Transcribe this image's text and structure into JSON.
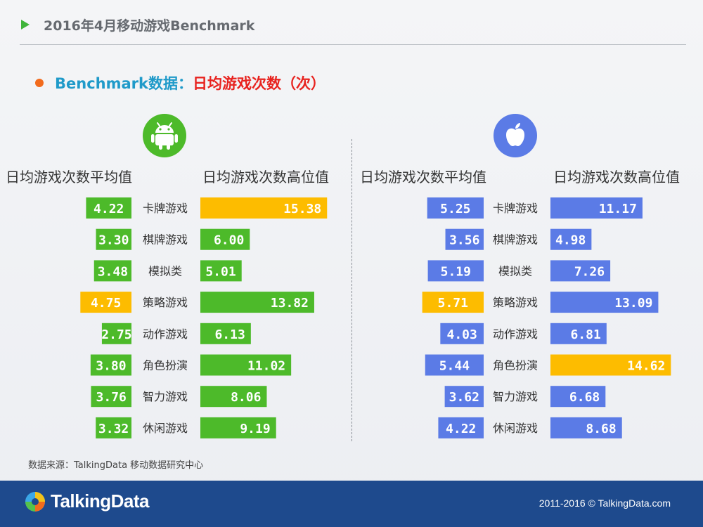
{
  "header": {
    "title": "2016年4月移动游戏Benchmark"
  },
  "subtitle": {
    "main": "Benchmark数据：",
    "highlight": "日均游戏次数（次）"
  },
  "colors": {
    "android": "#4dba2a",
    "ios": "#5b7be6",
    "highlight": "#fdbc00",
    "accent_orange": "#f26b1d",
    "title_blue": "#1f9ac9",
    "title_red": "#e8231f",
    "footer": "#1e4a8d"
  },
  "icons": {
    "android": "android-icon",
    "ios": "apple-icon"
  },
  "chart_data": [
    {
      "type": "bar",
      "platform": "Android",
      "categories": [
        "卡牌游戏",
        "棋牌游戏",
        "模拟类",
        "策略游戏",
        "动作游戏",
        "角色扮演",
        "智力游戏",
        "休闲游戏"
      ],
      "series": [
        {
          "name": "日均游戏次数平均值",
          "values": [
            4.22,
            3.3,
            3.48,
            4.75,
            2.75,
            3.8,
            3.76,
            3.32
          ],
          "labels": [
            "4.22",
            "3.30",
            "3.48",
            "4.75",
            "2.75",
            "3.80",
            "3.76",
            "3.32"
          ],
          "highlight_index": 3
        },
        {
          "name": "日均游戏次数高位值",
          "values": [
            15.38,
            6.0,
            5.01,
            13.82,
            6.13,
            11.02,
            8.06,
            9.19
          ],
          "labels": [
            "15.38",
            "6.00",
            "5.01",
            "13.82",
            "6.13",
            "11.02",
            "8.06",
            "9.19"
          ],
          "highlight_index": 0
        }
      ]
    },
    {
      "type": "bar",
      "platform": "iOS",
      "categories": [
        "卡牌游戏",
        "棋牌游戏",
        "模拟类",
        "策略游戏",
        "动作游戏",
        "角色扮演",
        "智力游戏",
        "休闲游戏"
      ],
      "series": [
        {
          "name": "日均游戏次数平均值",
          "values": [
            5.25,
            3.56,
            5.19,
            5.71,
            4.03,
            5.44,
            3.62,
            4.22
          ],
          "labels": [
            "5.25",
            "3.56",
            "5.19",
            "5.71",
            "4.03",
            "5.44",
            "3.62",
            "4.22"
          ],
          "highlight_index": 3
        },
        {
          "name": "日均游戏次数高位值",
          "values": [
            11.17,
            4.98,
            7.26,
            13.09,
            6.81,
            14.62,
            6.68,
            8.68
          ],
          "labels": [
            "11.17",
            "4.98",
            "7.26",
            "13.09",
            "6.81",
            "14.62",
            "6.68",
            "8.68"
          ],
          "highlight_index": 5
        }
      ]
    }
  ],
  "source": "数据来源：TalkingData 移动数据研究中心",
  "footer": {
    "logo_text": "TalkingData",
    "copyright": "2011-2016 © TalkingData.com"
  }
}
